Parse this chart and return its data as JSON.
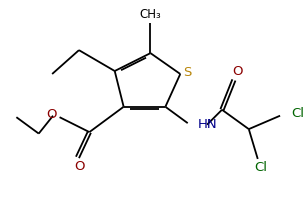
{
  "bg_color": "#ffffff",
  "bond_color": "#000000",
  "S_color": "#b8860b",
  "N_color": "#00008b",
  "O_color": "#8b0000",
  "Cl_color": "#006400",
  "lw": 1.3,
  "dbl_off": 0.07,
  "figsize": [
    3.05,
    2.18
  ],
  "dpi": 100,
  "xlim": [
    0,
    10
  ],
  "ylim": [
    0,
    7.15
  ]
}
